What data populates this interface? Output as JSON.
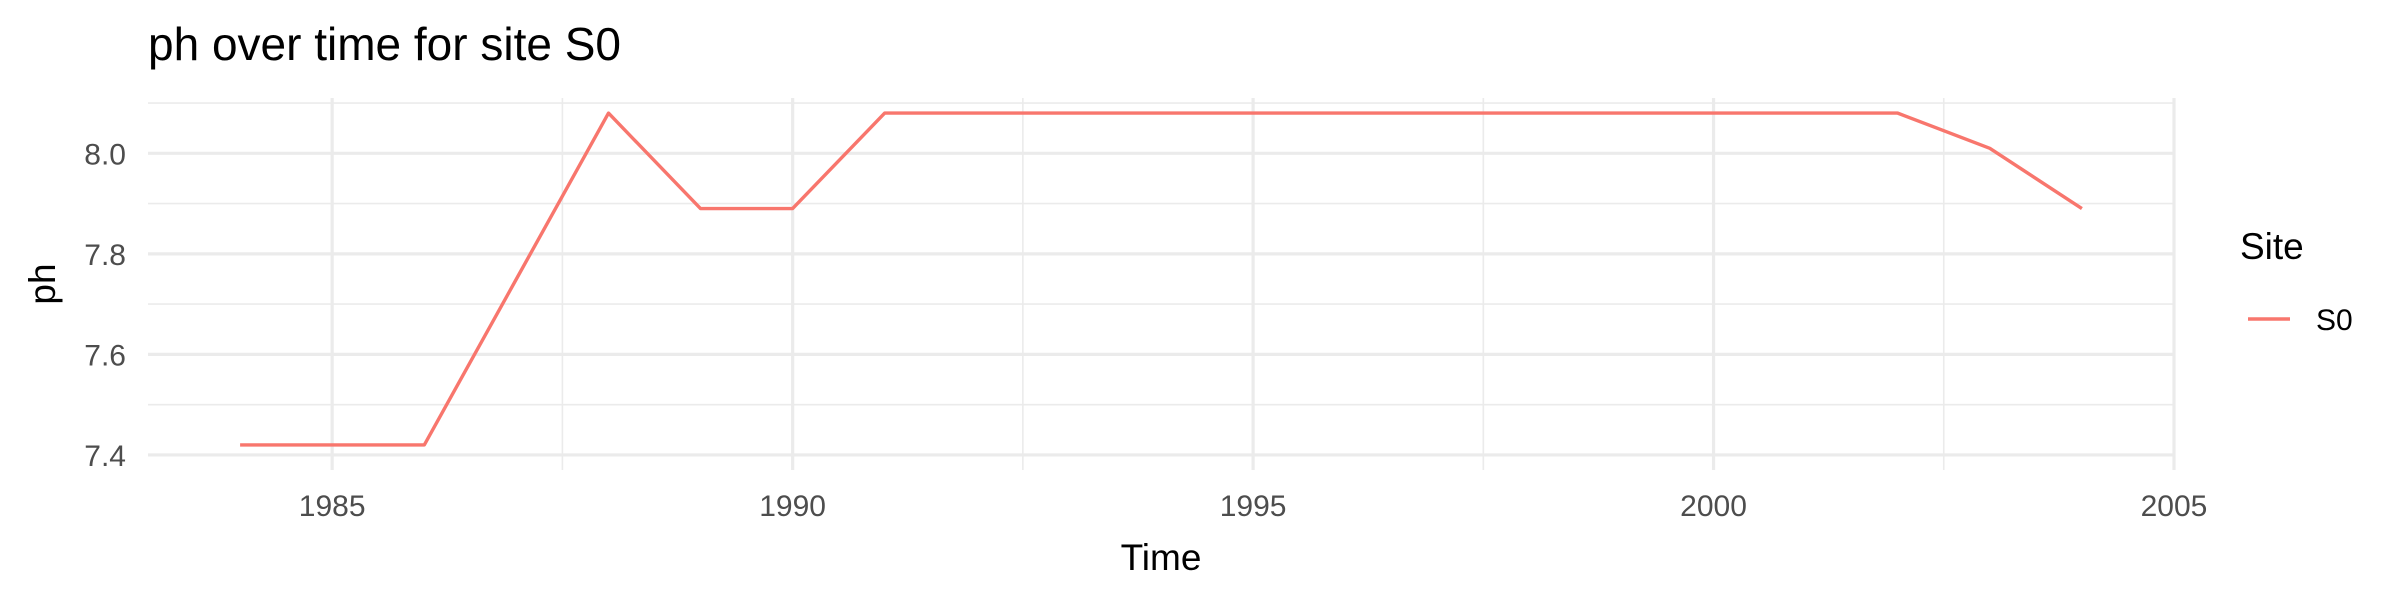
{
  "chart_data": {
    "type": "line",
    "title": "ph over time for site S0",
    "xlabel": "Time",
    "ylabel": "ph",
    "xlim": [
      1983,
      2005
    ],
    "ylim": [
      7.37,
      8.11
    ],
    "x_ticks": [
      1985,
      1990,
      1995,
      2000,
      2005
    ],
    "y_ticks": [
      7.4,
      7.6,
      7.8,
      8.0
    ],
    "x_tick_labels": [
      "1985",
      "1990",
      "1995",
      "2000",
      "2005"
    ],
    "y_tick_labels": [
      "7.4",
      "7.6",
      "7.8",
      "8.0"
    ],
    "grid": true,
    "legend": {
      "title": "Site",
      "position": "right"
    },
    "series": [
      {
        "name": "S0",
        "color": "#F8766D",
        "x": [
          1984,
          1985,
          1986,
          1987,
          1988,
          1989,
          1990,
          1991,
          1992,
          1993,
          1994,
          1995,
          1996,
          1997,
          1998,
          1999,
          2000,
          2001,
          2002,
          2003,
          2004
        ],
        "y": [
          7.42,
          7.42,
          7.42,
          7.75,
          8.08,
          7.89,
          7.89,
          8.08,
          8.08,
          8.08,
          8.08,
          8.08,
          8.08,
          8.08,
          8.08,
          8.08,
          8.08,
          8.08,
          8.08,
          8.01,
          7.89
        ]
      }
    ]
  }
}
